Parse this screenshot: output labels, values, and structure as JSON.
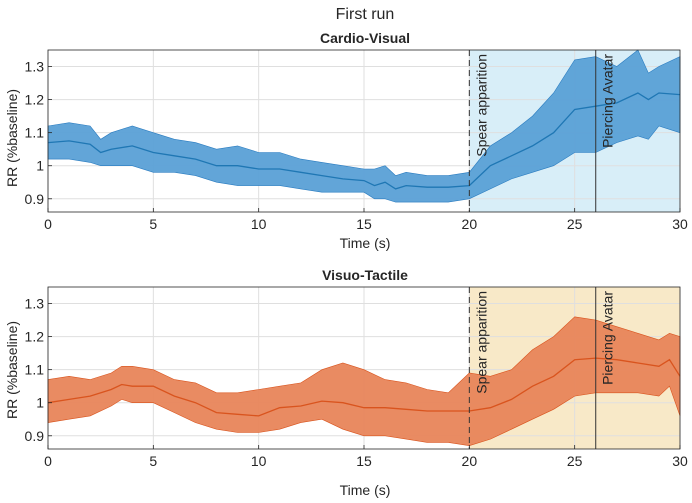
{
  "suptitle": "First run",
  "chart_data": [
    {
      "type": "line",
      "title": "Cardio-Visual",
      "xlabel": "Time (s)",
      "ylabel": "RR (%baseline)",
      "xlim": [
        0,
        30
      ],
      "ylim": [
        0.86,
        1.35
      ],
      "xticks": [
        0,
        5,
        10,
        15,
        20,
        25,
        30
      ],
      "yticks": [
        0.9,
        1,
        1.1,
        1.2,
        1.3
      ],
      "ytick_labels": [
        "0.9",
        "1",
        "1.1",
        "1.2",
        "1.3"
      ],
      "grid": true,
      "colors": {
        "line": "#1f77b4",
        "band": "#5aa0d6",
        "band_edge": "#2a7cc0",
        "region": "#d8eef8"
      },
      "events": [
        {
          "x": 20,
          "label": "Spear apparition",
          "style": "dashed"
        },
        {
          "x": 26,
          "label": "Piercing Avatar",
          "style": "solid"
        }
      ],
      "shaded_region": [
        20,
        30
      ],
      "series": [
        {
          "name": "mean",
          "x": [
            0,
            1,
            2,
            2.5,
            3,
            4,
            5,
            6,
            7,
            8,
            9,
            10,
            11,
            12,
            13,
            14,
            15,
            15.5,
            16,
            16.5,
            17,
            18,
            19,
            20,
            21,
            22,
            23,
            24,
            25,
            26,
            27,
            28,
            28.5,
            29,
            30
          ],
          "y": [
            1.07,
            1.075,
            1.065,
            1.04,
            1.05,
            1.06,
            1.04,
            1.03,
            1.02,
            1.0,
            1.0,
            0.99,
            0.99,
            0.98,
            0.97,
            0.96,
            0.955,
            0.94,
            0.95,
            0.93,
            0.94,
            0.935,
            0.935,
            0.94,
            1.0,
            1.03,
            1.06,
            1.1,
            1.17,
            1.18,
            1.19,
            1.22,
            1.2,
            1.22,
            1.215
          ],
          "upper": [
            1.12,
            1.13,
            1.12,
            1.08,
            1.1,
            1.12,
            1.1,
            1.08,
            1.07,
            1.05,
            1.06,
            1.04,
            1.04,
            1.02,
            1.01,
            1.0,
            0.99,
            0.99,
            1.0,
            0.97,
            0.98,
            0.97,
            0.97,
            0.98,
            1.06,
            1.1,
            1.15,
            1.22,
            1.32,
            1.33,
            1.3,
            1.35,
            1.28,
            1.3,
            1.33
          ],
          "lower": [
            1.02,
            1.02,
            1.01,
            1.0,
            1.0,
            1.0,
            0.98,
            0.98,
            0.97,
            0.95,
            0.94,
            0.94,
            0.94,
            0.93,
            0.92,
            0.92,
            0.92,
            0.9,
            0.9,
            0.89,
            0.89,
            0.89,
            0.89,
            0.9,
            0.93,
            0.96,
            0.98,
            1.0,
            1.04,
            1.04,
            1.07,
            1.09,
            1.08,
            1.12,
            1.1
          ]
        }
      ]
    },
    {
      "type": "line",
      "title": "Visuo-Tactile",
      "xlabel": "Time (s)",
      "ylabel": "RR (%baseline)",
      "xlim": [
        0,
        30
      ],
      "ylim": [
        0.86,
        1.35
      ],
      "xticks": [
        0,
        5,
        10,
        15,
        20,
        25,
        30
      ],
      "yticks": [
        0.9,
        1,
        1.1,
        1.2,
        1.3
      ],
      "ytick_labels": [
        "0.9",
        "1",
        "1.1",
        "1.2",
        "1.3"
      ],
      "grid": true,
      "colors": {
        "line": "#d9541e",
        "band": "#e8855a",
        "band_edge": "#d9541e",
        "region": "#f8e9c8"
      },
      "events": [
        {
          "x": 20,
          "label": "Spear apparition",
          "style": "dashed"
        },
        {
          "x": 26,
          "label": "Piercing Avatar",
          "style": "solid"
        }
      ],
      "shaded_region": [
        20,
        30
      ],
      "series": [
        {
          "name": "mean",
          "x": [
            0,
            1,
            2,
            3,
            3.5,
            4,
            5,
            6,
            7,
            8,
            9,
            10,
            11,
            12,
            13,
            14,
            15,
            16,
            17,
            18,
            19,
            20,
            21,
            22,
            23,
            24,
            25,
            26,
            27,
            28,
            29,
            29.5,
            30
          ],
          "y": [
            1.0,
            1.01,
            1.02,
            1.04,
            1.055,
            1.05,
            1.05,
            1.02,
            1.0,
            0.97,
            0.965,
            0.96,
            0.985,
            0.99,
            1.005,
            1.0,
            0.985,
            0.985,
            0.98,
            0.975,
            0.975,
            0.975,
            0.985,
            1.01,
            1.05,
            1.08,
            1.13,
            1.135,
            1.13,
            1.12,
            1.11,
            1.13,
            1.08
          ],
          "upper": [
            1.07,
            1.08,
            1.07,
            1.09,
            1.11,
            1.11,
            1.1,
            1.07,
            1.06,
            1.03,
            1.03,
            1.04,
            1.05,
            1.06,
            1.1,
            1.12,
            1.1,
            1.07,
            1.06,
            1.04,
            1.03,
            1.09,
            1.08,
            1.1,
            1.16,
            1.2,
            1.26,
            1.25,
            1.23,
            1.21,
            1.19,
            1.21,
            1.2
          ],
          "lower": [
            0.94,
            0.95,
            0.96,
            0.99,
            1.01,
            1.0,
            1.0,
            0.97,
            0.94,
            0.92,
            0.91,
            0.91,
            0.92,
            0.94,
            0.95,
            0.92,
            0.9,
            0.9,
            0.89,
            0.88,
            0.88,
            0.87,
            0.89,
            0.92,
            0.95,
            0.98,
            1.02,
            1.03,
            1.03,
            1.03,
            1.02,
            1.05,
            0.96
          ]
        }
      ]
    }
  ]
}
